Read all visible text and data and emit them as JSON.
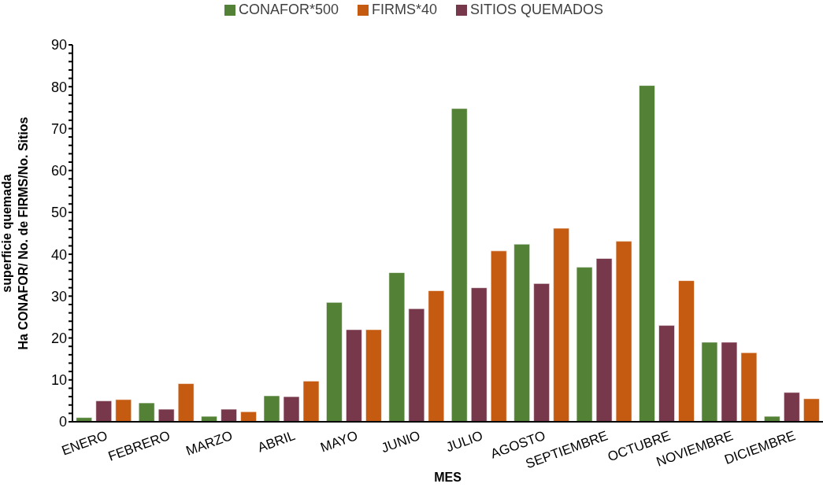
{
  "chart_data": {
    "type": "bar",
    "xlabel": "MES",
    "ylabel": "superficie quemada\nHa CONAFOR/ No. de FIRMS/No. Sitios",
    "categories": [
      "ENERO",
      "FEBRERO",
      "MARZO",
      "ABRIL",
      "MAYO",
      "JUNIO",
      "JULIO",
      "AGOSTO",
      "SEPTIEMBRE",
      "OCTUBRE",
      "NOVIEMBRE",
      "DICIEMBRE"
    ],
    "series": [
      {
        "name": "CONAFOR*500",
        "color": "#538135",
        "values": [
          1,
          4.5,
          1.3,
          6.2,
          28.5,
          35.6,
          74.8,
          42.4,
          36.9,
          80.3,
          19,
          1.3
        ]
      },
      {
        "name": "SITIOS QUEMADOS",
        "color": "#78384c",
        "values": [
          5,
          3,
          3,
          6,
          22,
          27,
          32,
          33,
          39,
          23,
          19,
          7
        ]
      },
      {
        "name": "FIRMS*40",
        "color": "#c55a11",
        "values": [
          5.3,
          9.1,
          2.4,
          9.7,
          22,
          31.3,
          40.8,
          46.2,
          43.1,
          33.7,
          16.5,
          5.5
        ]
      }
    ],
    "ylim": [
      0,
      90
    ],
    "yticks": [
      0,
      {
        "value": 2,
        "label": null
      },
      {
        "value": 4,
        "label": null
      },
      {
        "value": 6,
        "label": null
      },
      {
        "value": 8,
        "label": null
      },
      10,
      {
        "value": 12,
        "label": null
      },
      {
        "value": 14,
        "label": null
      },
      {
        "value": 16,
        "label": null
      },
      {
        "value": 18,
        "label": null
      },
      20,
      {
        "value": 22,
        "label": null
      },
      {
        "value": 24,
        "label": null
      },
      {
        "value": 26,
        "label": null
      },
      {
        "value": 28,
        "label": null
      },
      30,
      {
        "value": 32,
        "label": null
      },
      {
        "value": 34,
        "label": null
      },
      {
        "value": 36,
        "label": null
      },
      {
        "value": 38,
        "label": null
      },
      40,
      {
        "value": 42,
        "label": null
      },
      {
        "value": 44,
        "label": null
      },
      {
        "value": 46,
        "label": null
      },
      {
        "value": 48,
        "label": null
      },
      50,
      {
        "value": 52,
        "label": null
      },
      {
        "value": 54,
        "label": null
      },
      {
        "value": 56,
        "label": null
      },
      {
        "value": 58,
        "label": null
      },
      60,
      {
        "value": 62,
        "label": null
      },
      {
        "value": 64,
        "label": null
      },
      {
        "value": 66,
        "label": null
      },
      {
        "value": 68,
        "label": null
      },
      70,
      {
        "value": 72,
        "label": null
      },
      {
        "value": 74,
        "label": null
      },
      {
        "value": 76,
        "label": null
      },
      {
        "value": 78,
        "label": null
      },
      80,
      {
        "value": 82,
        "label": null
      },
      {
        "value": 84,
        "label": null
      },
      {
        "value": 86,
        "label": null
      },
      {
        "value": 88,
        "label": null
      },
      90
    ],
    "grid": false,
    "legend": "top"
  }
}
